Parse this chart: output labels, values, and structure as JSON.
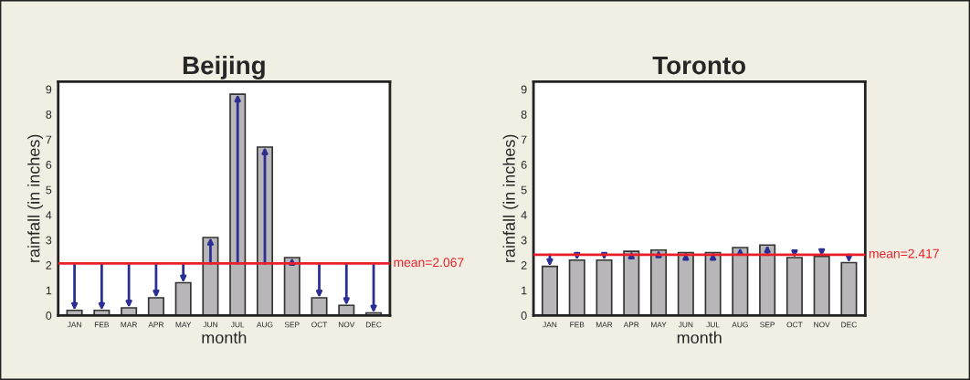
{
  "chart_data": [
    {
      "type": "bar",
      "title": "Beijing",
      "xlabel": "month",
      "ylabel": "rainfall (in inches)",
      "categories": [
        "JAN",
        "FEB",
        "MAR",
        "APR",
        "MAY",
        "JUN",
        "JUL",
        "AUG",
        "SEP",
        "OCT",
        "NOV",
        "DEC"
      ],
      "series": [
        {
          "color": "#b8b6b8",
          "values": [
            0.2,
            0.2,
            0.3,
            0.7,
            1.3,
            3.1,
            8.8,
            6.7,
            2.3,
            0.7,
            0.4,
            0.1
          ]
        }
      ],
      "ylim": [
        0,
        9.3
      ],
      "yticks": [
        0,
        1,
        2,
        3,
        4,
        5,
        6,
        7,
        8,
        9
      ],
      "grid": false,
      "ref_lines": [
        {
          "axis": "y",
          "value": 2.067,
          "label": "mean=2.067",
          "color": "#e8202a"
        }
      ]
    },
    {
      "type": "bar",
      "title": "Toronto",
      "xlabel": "month",
      "ylabel": "rainfall (in inches)",
      "categories": [
        "JAN",
        "FEB",
        "MAR",
        "APR",
        "MAY",
        "JUN",
        "JUL",
        "AUG",
        "SEP",
        "OCT",
        "NOV",
        "DEC"
      ],
      "series": [
        {
          "color": "#b8b6b8",
          "values": [
            1.95,
            2.2,
            2.2,
            2.55,
            2.6,
            2.5,
            2.5,
            2.7,
            2.8,
            2.3,
            2.35,
            2.1
          ]
        }
      ],
      "ylim": [
        0,
        9.3
      ],
      "yticks": [
        0,
        1,
        2,
        3,
        4,
        5,
        6,
        7,
        8,
        9
      ],
      "grid": false,
      "ref_lines": [
        {
          "axis": "y",
          "value": 2.417,
          "label": "mean=2.417",
          "color": "#e8202a"
        }
      ]
    }
  ]
}
